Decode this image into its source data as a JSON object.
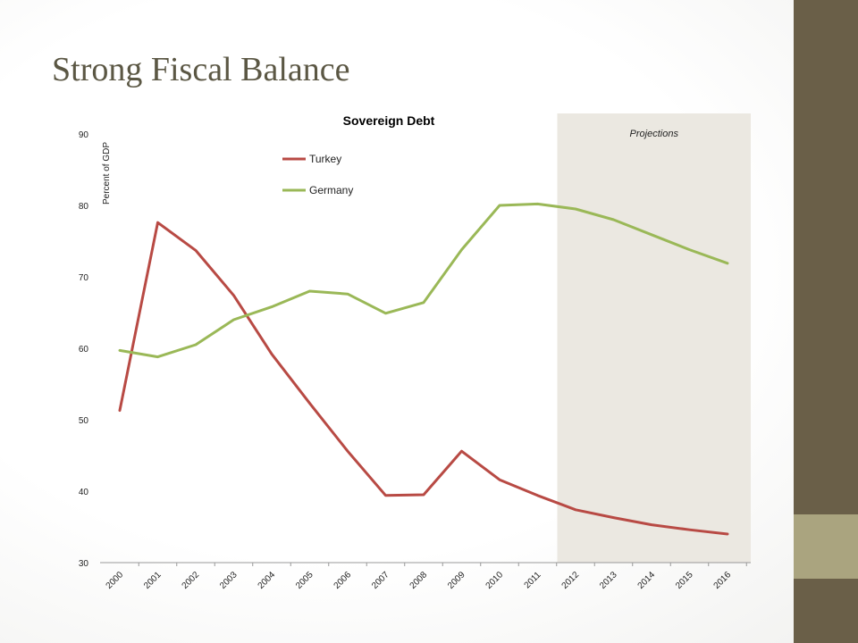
{
  "slide": {
    "title": "Strong Fiscal Balance"
  },
  "colors": {
    "turkey": "#b84a44",
    "germany": "#9ab857",
    "projection_shade": "#ebe8e1",
    "sidebar_dark": "#6a5f48",
    "sidebar_light": "#aaa47f",
    "title": "#5b5744"
  },
  "chart_data": {
    "type": "line",
    "title": "Sovereign Debt",
    "ylabel": "Percent of GDP",
    "xlabel": "",
    "ylim": [
      30,
      90
    ],
    "yticks": [
      30,
      40,
      50,
      60,
      70,
      80,
      90
    ],
    "categories": [
      "2000",
      "2001",
      "2002",
      "2003",
      "2004",
      "2005",
      "2006",
      "2007",
      "2008",
      "2009",
      "2010",
      "2011",
      "2012",
      "2013",
      "2014",
      "2015",
      "2016"
    ],
    "projection": {
      "label": "Projections",
      "from": "2011",
      "to": "2016"
    },
    "legend_position": "top-left",
    "grid": false,
    "series": [
      {
        "name": "Turkey",
        "values": [
          51.3,
          77.6,
          73.7,
          67.4,
          59.2,
          52.3,
          45.6,
          39.4,
          39.5,
          45.6,
          41.6,
          39.4,
          37.4,
          36.3,
          35.3,
          34.6,
          34.0
        ]
      },
      {
        "name": "Germany",
        "values": [
          59.7,
          58.8,
          60.5,
          64.0,
          65.8,
          68.0,
          67.6,
          64.9,
          66.4,
          73.8,
          80.0,
          80.2,
          79.5,
          78.0,
          75.9,
          73.8,
          71.9
        ]
      }
    ]
  }
}
